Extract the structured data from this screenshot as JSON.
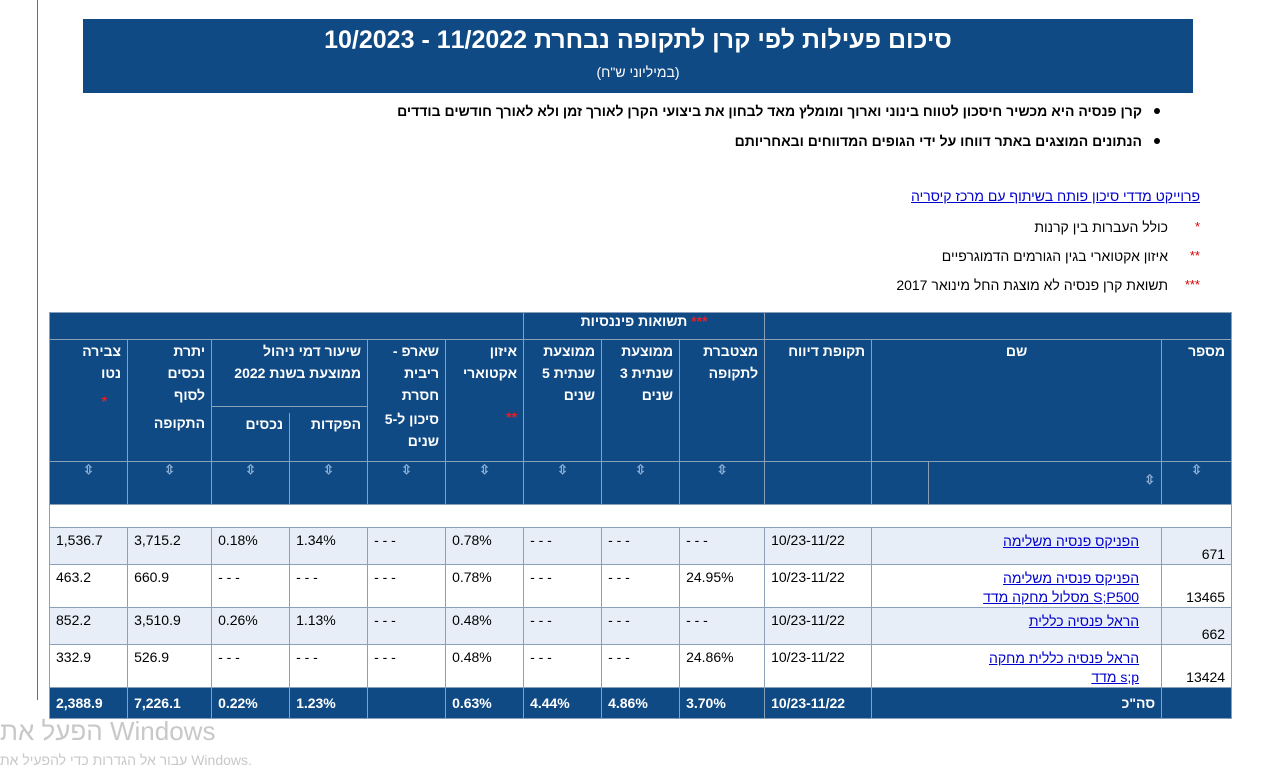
{
  "banner": {
    "title": "סיכום פעילות לפי קרן לתקופה נבחרת 11/2022 - 10/2023",
    "subtitle": "(במיליוני ש\"ח)"
  },
  "bullets": [
    "קרן פנסיה היא מכשיר חיסכון לטווח בינוני וארוך ומומלץ מאד לבחון את ביצועי הקרן לאורך זמן ולא לאורך חודשים בודדים",
    "הנתונים המוצגים באתר דווחו על ידי הגופים המדווחים ובאחריותם"
  ],
  "link": "פרוייקט מדדי סיכון פותח בשיתוף עם מרכז קיסריה",
  "notes": [
    {
      "stars": "*",
      "text": "כולל העברות בין קרנות"
    },
    {
      "stars": "**",
      "text": "איזון אקטוארי בגין הגורמים הדמוגרפיים"
    },
    {
      "stars": "***",
      "text": "תשואת קרן פנסיה לא מוצגת החל מינואר 2017"
    }
  ],
  "table": {
    "group_returns": "תשואות פיננסיות",
    "group_returns_stars": "***",
    "headers": {
      "number": "מספר",
      "name": "שם",
      "period": "תקופת דיווח",
      "cumulative": "מצטברת לתקופה",
      "avg3": "ממוצעת שנתית 3 שנים",
      "avg5": "ממוצעת שנתית 5 שנים",
      "actuarial": "איזון אקטוארי",
      "actuarial_stars": "**",
      "sharpe": "שארפ - ריבית חסרת",
      "sharpe2": "סיכון ל-5 שנים",
      "fee": "שיעור דמי ניהול ממוצעת בשנת 2022",
      "fee_deposits": "הפקדות",
      "fee_assets": "נכסים",
      "balance": "יתרת נכסים לסוף",
      "balance2": "התקופה",
      "net": "צבירה נטו",
      "net_stars": "*"
    },
    "sort_icon": "⇳",
    "rows": [
      {
        "num": "671",
        "name": [
          "הפניקס פנסיה משלימה"
        ],
        "period": "10/23-11/22",
        "cum": "- - -",
        "avg3": "- - -",
        "avg5": "- - -",
        "act": "0.78%",
        "sharpe": "- - -",
        "fd": "1.34%",
        "fa": "0.18%",
        "bal": "3,715.2",
        "net": "1,536.7"
      },
      {
        "num": "13465",
        "name": [
          "הפניקס פנסיה משלימה",
          "S;P500 מסלול מחקה מדד"
        ],
        "period": "10/23-11/22",
        "cum": "24.95%",
        "avg3": "- - -",
        "avg5": "- - -",
        "act": "0.78%",
        "sharpe": "- - -",
        "fd": "- - -",
        "fa": "- - -",
        "bal": "660.9",
        "net": "463.2"
      },
      {
        "num": "662",
        "name": [
          "הראל פנסיה כללית"
        ],
        "period": "10/23-11/22",
        "cum": "- - -",
        "avg3": "- - -",
        "avg5": "- - -",
        "act": "0.48%",
        "sharpe": "- - -",
        "fd": "1.13%",
        "fa": "0.26%",
        "bal": "3,510.9",
        "net": "852.2"
      },
      {
        "num": "13424",
        "name": [
          "הראל פנסיה כללית מחקה",
          "s;p מדד"
        ],
        "period": "10/23-11/22",
        "cum": "24.86%",
        "avg3": "- - -",
        "avg5": "- - -",
        "act": "0.48%",
        "sharpe": "- - -",
        "fd": "- - -",
        "fa": "- - -",
        "bal": "526.9",
        "net": "332.9"
      }
    ],
    "total": {
      "label": "סה\"כ",
      "period": "10/23-11/22",
      "cum": "3.70%",
      "avg3": "4.86%",
      "avg5": "4.44%",
      "act": "0.63%",
      "sharpe": "",
      "fd": "1.23%",
      "fa": "0.22%",
      "bal": "7,226.1",
      "net": "2,388.9"
    }
  },
  "watermark": {
    "line1": "הפעל את Windows",
    "line2": "עבור אל הגדרות כדי להפעיל את Windows."
  }
}
